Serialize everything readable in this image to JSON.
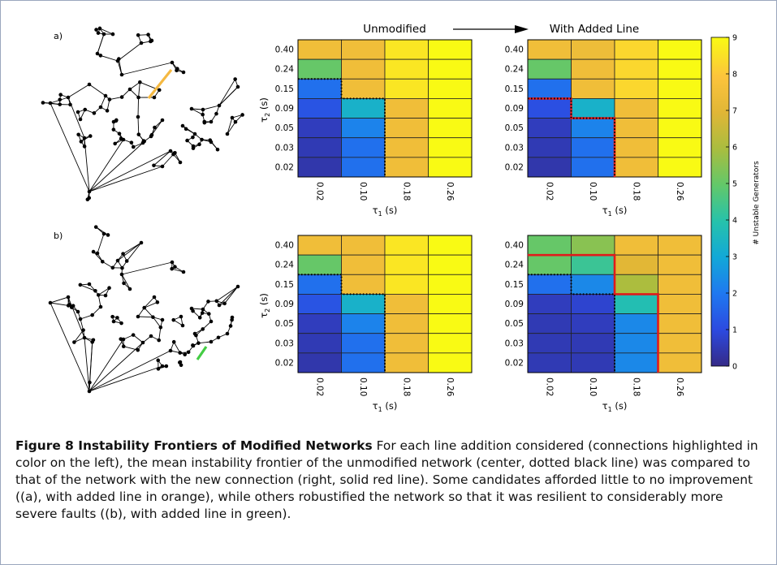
{
  "figure": {
    "panel_labels": [
      "a)",
      "b)"
    ],
    "header_unmodified": "Unmodified",
    "header_added": "With Added Line",
    "y_ticks": [
      "0.40",
      "0.24",
      "0.15",
      "0.09",
      "0.05",
      "0.03",
      "0.02"
    ],
    "x_ticks": [
      "0.02",
      "0.10",
      "0.18",
      "0.26"
    ],
    "xlabel": "τ",
    "xlabel_sub": "1",
    "xlabel_unit": " (s)",
    "ylabel": "τ",
    "ylabel_sub": "2",
    "ylabel_unit": " (s)",
    "colorbar_label": "# Unstable Generators",
    "colorbar_ticks": [
      "0",
      "1",
      "2",
      "3",
      "4",
      "5",
      "6",
      "7",
      "8",
      "9"
    ],
    "added_line_colors": {
      "a": "#f5b942",
      "b": "#44cc44"
    },
    "frontier_colors": {
      "unmodified": "#000000",
      "added": "#e01b1b"
    }
  },
  "chart_data": [
    {
      "type": "heatmap",
      "name": "a-unmodified",
      "xlabel": "τ1 (s)",
      "ylabel": "τ2 (s)",
      "x": [
        "0.02",
        "0.10",
        "0.18",
        "0.26"
      ],
      "y": [
        "0.40",
        "0.24",
        "0.15",
        "0.09",
        "0.05",
        "0.03",
        "0.02"
      ],
      "values": [
        [
          7.5,
          7.5,
          8.6,
          9
        ],
        [
          5,
          7.5,
          8.6,
          9
        ],
        [
          1.8,
          7.5,
          8.6,
          9
        ],
        [
          1.2,
          3.3,
          7.5,
          9
        ],
        [
          0.6,
          2.2,
          7.5,
          9
        ],
        [
          0.5,
          1.8,
          7.5,
          9
        ],
        [
          0.4,
          1.8,
          7.5,
          9
        ]
      ],
      "frontier": "dotted black"
    },
    {
      "type": "heatmap",
      "name": "a-added",
      "xlabel": "τ1 (s)",
      "ylabel": "τ2 (s)",
      "x": [
        "0.02",
        "0.10",
        "0.18",
        "0.26"
      ],
      "y": [
        "0.40",
        "0.24",
        "0.15",
        "0.09",
        "0.05",
        "0.03",
        "0.02"
      ],
      "values": [
        [
          7.5,
          7.4,
          8.3,
          9
        ],
        [
          5,
          7.5,
          8.3,
          9
        ],
        [
          1.8,
          7.5,
          8.3,
          9
        ],
        [
          1.1,
          3.3,
          7.5,
          9
        ],
        [
          0.6,
          2.2,
          7.5,
          9
        ],
        [
          0.5,
          1.8,
          7.5,
          9
        ],
        [
          0.4,
          1.8,
          7.5,
          9
        ]
      ],
      "frontier": "solid red"
    },
    {
      "type": "heatmap",
      "name": "b-unmodified",
      "xlabel": "τ1 (s)",
      "ylabel": "τ2 (s)",
      "x": [
        "0.02",
        "0.10",
        "0.18",
        "0.26"
      ],
      "y": [
        "0.40",
        "0.24",
        "0.15",
        "0.09",
        "0.05",
        "0.03",
        "0.02"
      ],
      "values": [
        [
          7.5,
          7.5,
          8.6,
          9
        ],
        [
          5,
          7.5,
          8.6,
          9
        ],
        [
          1.8,
          7.5,
          8.6,
          9
        ],
        [
          1.2,
          3.3,
          7.5,
          9
        ],
        [
          0.6,
          2.2,
          7.5,
          9
        ],
        [
          0.5,
          1.8,
          7.5,
          9
        ],
        [
          0.4,
          1.8,
          7.5,
          9
        ]
      ],
      "frontier": "dotted black"
    },
    {
      "type": "heatmap",
      "name": "b-added",
      "xlabel": "τ1 (s)",
      "ylabel": "τ2 (s)",
      "x": [
        "0.02",
        "0.10",
        "0.18",
        "0.26"
      ],
      "y": [
        "0.40",
        "0.24",
        "0.15",
        "0.09",
        "0.05",
        "0.03",
        "0.02"
      ],
      "values": [
        [
          5,
          5.5,
          7.5,
          7.5
        ],
        [
          5,
          4.3,
          7,
          7.5
        ],
        [
          1.8,
          2.3,
          6,
          7.5
        ],
        [
          0.6,
          0.8,
          3.8,
          7.5
        ],
        [
          0.5,
          0.6,
          2.3,
          7.5
        ],
        [
          0.5,
          0.5,
          2.3,
          7.5
        ],
        [
          0.5,
          0.5,
          2.3,
          7.5
        ]
      ],
      "frontier": "solid red"
    }
  ],
  "caption": {
    "title": "Figure 8 Instability Frontiers of Modified Networks",
    "body": " For each line addition considered (connections highlighted in color on the left), the mean instability frontier of the unmodified network (center, dotted black line) was compared to that of the network with the new connection (right, solid red line). Some candidates afforded little to no improvement ((a), with added line in orange), while others robustified the network so that it was resilient to considerably more severe faults ((b), with added line in green)."
  }
}
